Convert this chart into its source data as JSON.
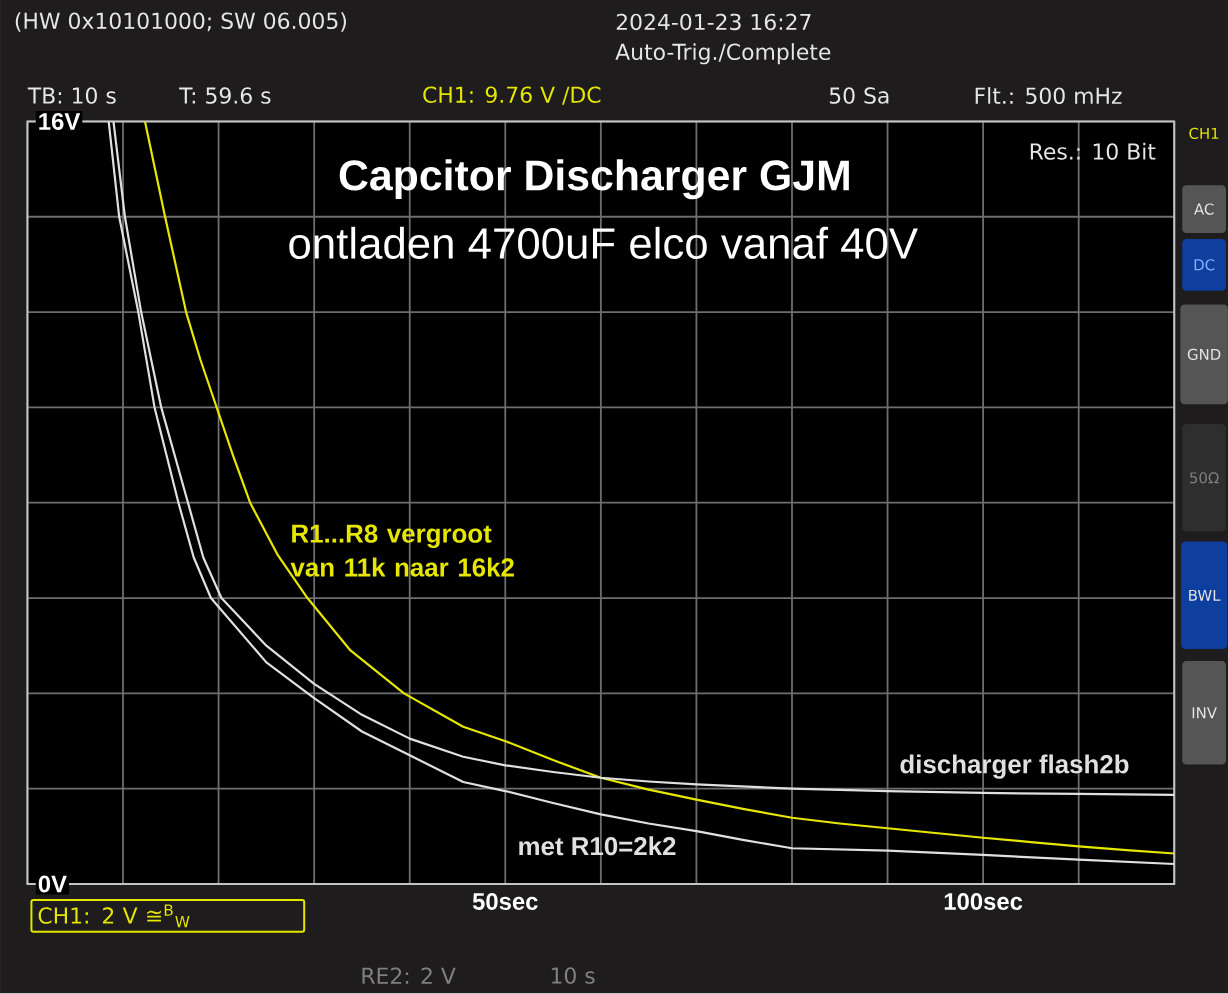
{
  "chart_data": {
    "type": "line",
    "title": "Capcitor Discharger GJM",
    "subtitle": "ontladen 4700uF elco vanaf 40V",
    "xlim": [
      0,
      120
    ],
    "ylim": [
      0,
      16
    ],
    "xticks": [
      {
        "value": 0,
        "label": null
      },
      {
        "value": 10,
        "label": null
      },
      {
        "value": 20,
        "label": null
      },
      {
        "value": 30,
        "label": null
      },
      {
        "value": 40,
        "label": null
      },
      {
        "value": 50,
        "label": "50sec"
      },
      {
        "value": 60,
        "label": null
      },
      {
        "value": 70,
        "label": null
      },
      {
        "value": 80,
        "label": null
      },
      {
        "value": 90,
        "label": null
      },
      {
        "value": 100,
        "label": "100sec"
      },
      {
        "value": 110,
        "label": null
      },
      {
        "value": 120,
        "label": null
      }
    ],
    "yticks": [
      {
        "value": 0,
        "label": "0V"
      },
      {
        "value": 2,
        "label": null
      },
      {
        "value": 4,
        "label": null
      },
      {
        "value": 6,
        "label": null
      },
      {
        "value": 8,
        "label": null
      },
      {
        "value": 10,
        "label": null
      },
      {
        "value": 12,
        "label": null
      },
      {
        "value": 14,
        "label": null
      },
      {
        "value": 16,
        "label": "16V"
      }
    ],
    "grid": true,
    "legend": false,
    "marker": "none",
    "line_style": "solid",
    "series": [
      {
        "name": "R1...R8 vergroot van 11k naar 16k2",
        "color": "#e6e600",
        "x": [
          12.3,
          14.4,
          16.6,
          18.1,
          19.8,
          21.5,
          23.3,
          26.2,
          29.3,
          33.8,
          39.4,
          45.6,
          50.1,
          55,
          60,
          65,
          70,
          75,
          80,
          85,
          90,
          95,
          100,
          105,
          110,
          115,
          120
        ],
        "values": [
          16,
          14,
          12,
          11,
          10,
          9,
          8,
          6.9,
          6,
          4.9,
          4,
          3.3,
          2.99,
          2.6,
          2.23,
          1.98,
          1.77,
          1.57,
          1.39,
          1.27,
          1.17,
          1.07,
          0.97,
          0.88,
          0.79,
          0.71,
          0.64
        ]
      },
      {
        "name": "discharger flash2b",
        "color": "#e0e0e0",
        "x": [
          9,
          10.2,
          11.9,
          14,
          16.8,
          18.4,
          20.3,
          25,
          30,
          35,
          40,
          45.6,
          50,
          55,
          60,
          65,
          70,
          80,
          90,
          100,
          110,
          120
        ],
        "values": [
          16,
          14,
          12,
          10,
          8,
          6.85,
          6,
          5,
          4.2,
          3.55,
          3.05,
          2.67,
          2.49,
          2.35,
          2.23,
          2.15,
          2.09,
          2,
          1.95,
          1.91,
          1.89,
          1.87
        ]
      },
      {
        "name": "met R10=2k2",
        "color": "#e0e0e0",
        "x": [
          8.5,
          9.6,
          11.6,
          13.3,
          15.8,
          17.4,
          19.2,
          25,
          30,
          35,
          40,
          45.6,
          50,
          55,
          60,
          65,
          70,
          75,
          80,
          90,
          100,
          110,
          120
        ],
        "values": [
          16,
          14,
          12,
          10,
          8,
          6.85,
          6,
          4.65,
          3.9,
          3.2,
          2.7,
          2.14,
          1.95,
          1.7,
          1.46,
          1.27,
          1.11,
          0.92,
          0.75,
          0.7,
          0.61,
          0.51,
          0.42
        ]
      }
    ],
    "annotations": [
      "(HW 0x10101000; SW 06.005)",
      "2024-01-23 16:27",
      "Auto-Trig./Complete",
      "TB: 10 s",
      "T: 59.6 s",
      "CH1: 9.76 V /DC",
      "50 Sa",
      "Flt.: 500 mHz",
      "Res.: 10 Bit",
      "CH1",
      "AC",
      "DC",
      "GND",
      "50Ω",
      "BWL",
      "INV",
      "CH1: 2 V ≅$^{B}$$_{W}$",
      "RE2: 2 V",
      "10 s"
    ]
  }
}
